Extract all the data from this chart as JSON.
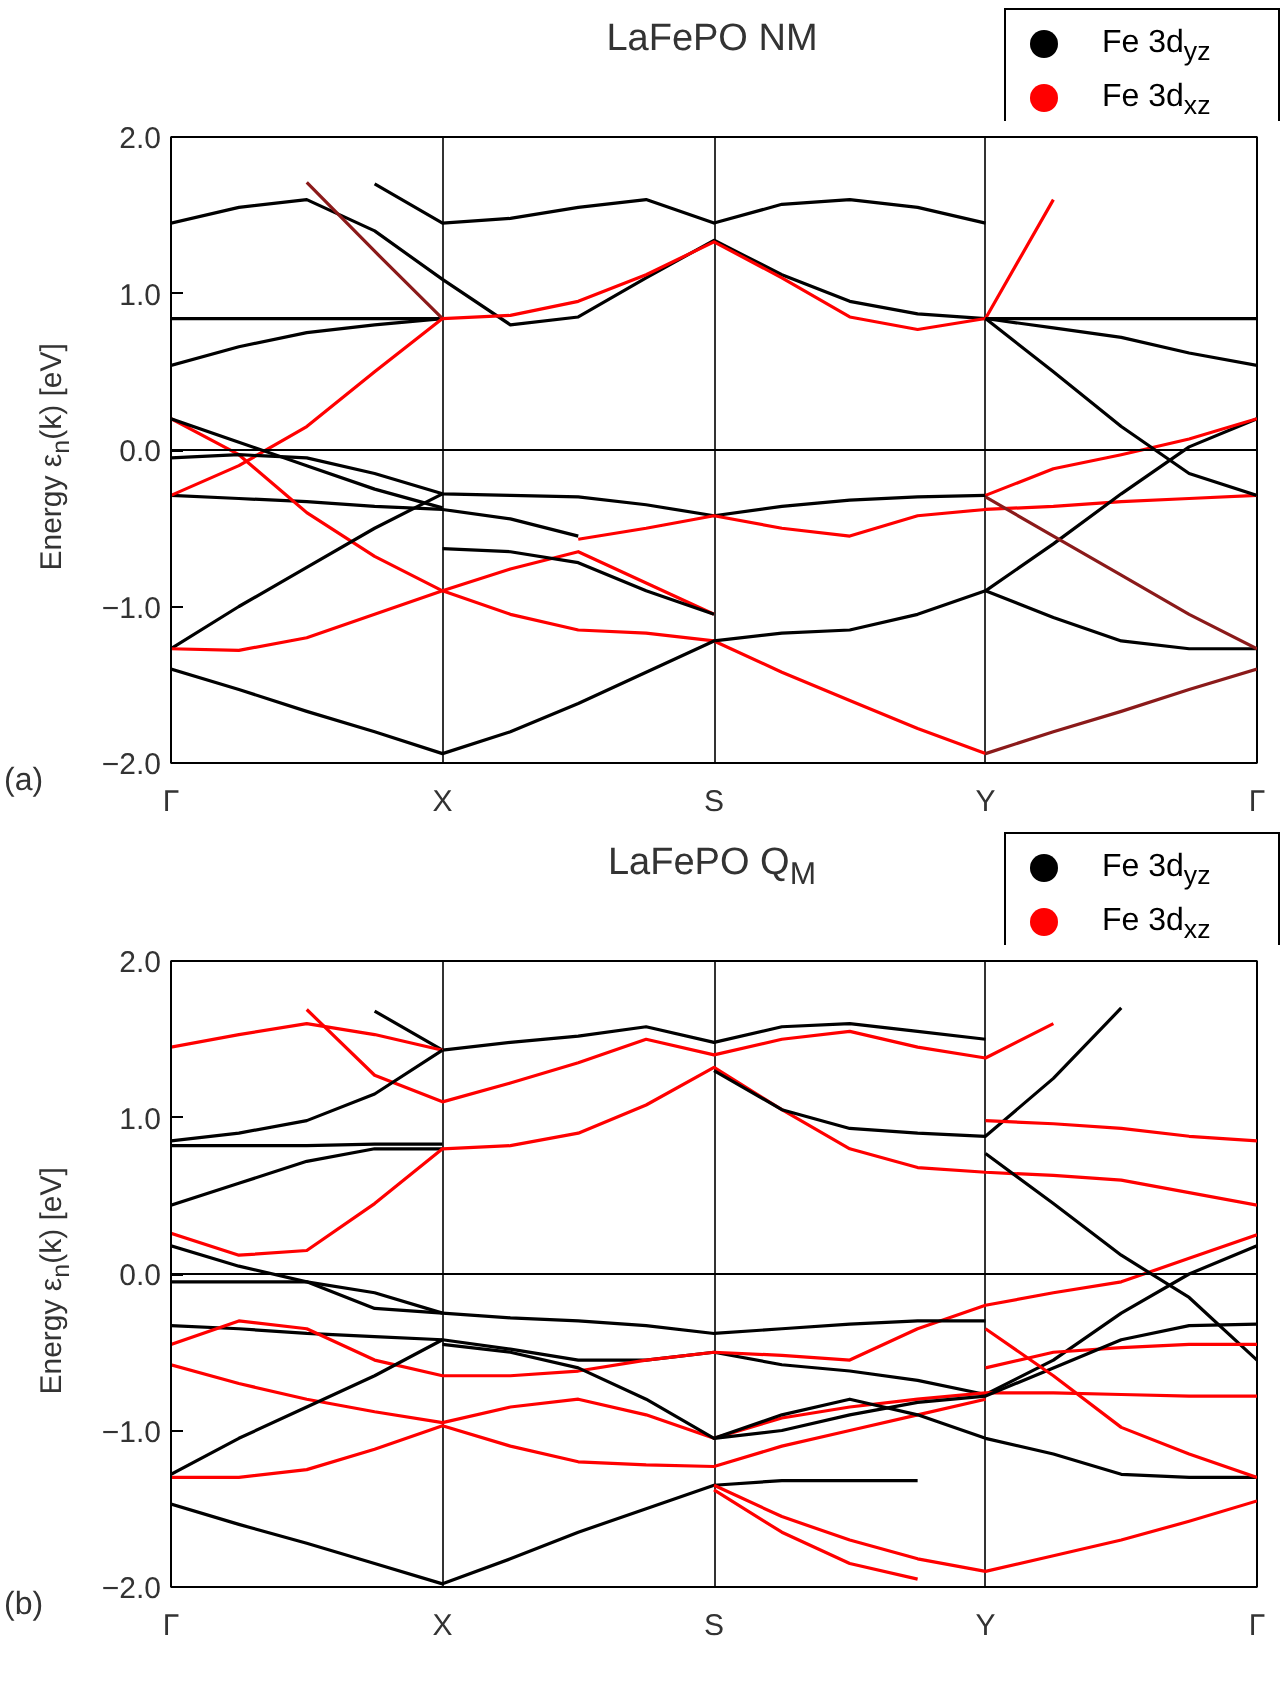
{
  "chart_data": [
    {
      "type": "line",
      "title": "LaFePO NM",
      "ylabel": "Energy ε$_{n}$(k)  [eV]",
      "annotations": [
        "(a)"
      ],
      "categories": [
        "Γ",
        null,
        null,
        null,
        "X",
        null,
        null,
        null,
        "S",
        null,
        null,
        null,
        "Y",
        null,
        null,
        null,
        "Γ"
      ],
      "ylim": [
        -2,
        2
      ],
      "yticks": [
        {
          "value": -2,
          "label": "−2.0"
        },
        {
          "value": -1,
          "label": "−1.0"
        },
        {
          "value": 0,
          "label": "0.0"
        },
        {
          "value": 1,
          "label": "1.0"
        },
        {
          "value": 2,
          "label": "2.0"
        }
      ],
      "grid": "x",
      "legend": "top right",
      "ref_lines": [
        {
          "axis": "y",
          "value": 0
        }
      ],
      "series": [
        {
          "name": "Fe 3d$_{yz}$",
          "color": "#000000",
          "values": [
            -0.29,
            -0.31,
            -0.33,
            -0.36,
            -0.38,
            -0.44,
            -0.55,
            null,
            null,
            null,
            null,
            null,
            null,
            null,
            null,
            null,
            null
          ]
        },
        {
          "name": "Fe 3d$_{xz}$",
          "color": "#ff0000",
          "values": [
            0.2,
            -0.03,
            -0.4,
            -0.68,
            -0.9,
            -1.05,
            -1.15,
            -1.17,
            -1.22,
            -1.42,
            -1.6,
            -1.78,
            -1.94,
            null,
            null,
            null,
            null
          ]
        },
        {
          "color": "#000000",
          "values": [
            1.45,
            1.55,
            1.6,
            1.4,
            1.09,
            0.8,
            0.85,
            1.1,
            1.34,
            1.12,
            0.95,
            0.87,
            0.84,
            0.84,
            0.84,
            0.84,
            0.84
          ]
        },
        {
          "color": "#000000",
          "values": [
            null,
            null,
            null,
            1.7,
            1.45,
            1.48,
            1.55,
            1.6,
            1.45,
            1.57,
            1.6,
            1.55,
            1.45,
            null,
            null,
            null,
            null
          ]
        },
        {
          "color": "#000000",
          "values": [
            0.84,
            0.84,
            0.84,
            0.84,
            0.84,
            null,
            null,
            null,
            null,
            null,
            null,
            null,
            null,
            null,
            null,
            null,
            null
          ]
        },
        {
          "color": "#000000",
          "values": [
            0.54,
            0.66,
            0.75,
            0.8,
            0.84,
            null,
            null,
            null,
            null,
            null,
            null,
            null,
            null,
            null,
            null,
            null,
            null
          ]
        },
        {
          "color": "#8b1a1a",
          "values": [
            null,
            null,
            1.71,
            1.27,
            0.84,
            null,
            null,
            null,
            null,
            null,
            null,
            null,
            null,
            null,
            null,
            null,
            null
          ]
        },
        {
          "color": "#ff0000",
          "values": [
            null,
            null,
            null,
            null,
            0.84,
            0.86,
            0.95,
            1.12,
            1.33,
            1.1,
            0.85,
            0.77,
            0.84,
            1.6,
            null,
            null,
            null
          ]
        },
        {
          "color": "#ff0000",
          "values": [
            -0.29,
            -0.1,
            0.15,
            0.5,
            0.84,
            null,
            null,
            null,
            null,
            null,
            null,
            null,
            null,
            null,
            null,
            null,
            null
          ]
        },
        {
          "color": "#000000",
          "values": [
            0.2,
            0.05,
            -0.1,
            -0.25,
            -0.37,
            null,
            null,
            null,
            null,
            null,
            null,
            null,
            null,
            null,
            null,
            null,
            null
          ]
        },
        {
          "color": "#000000",
          "values": [
            -0.05,
            -0.03,
            -0.05,
            -0.15,
            -0.28,
            -0.29,
            -0.3,
            -0.35,
            -0.42,
            -0.36,
            -0.32,
            -0.3,
            -0.29,
            null,
            null,
            null,
            null
          ]
        },
        {
          "color": "#ff0000",
          "values": [
            null,
            null,
            null,
            null,
            null,
            null,
            -0.57,
            -0.5,
            -0.42,
            -0.5,
            -0.55,
            -0.42,
            -0.38,
            -0.36,
            -0.33,
            -0.31,
            -0.29
          ]
        },
        {
          "color": "#000000",
          "values": [
            -1.27,
            -1.0,
            -0.75,
            -0.5,
            -0.28,
            null,
            null,
            null,
            null,
            null,
            null,
            null,
            null,
            null,
            null,
            null,
            null
          ]
        },
        {
          "color": "#000000",
          "values": [
            -1.4,
            -1.53,
            -1.67,
            -1.8,
            -1.94,
            -1.8,
            -1.62,
            -1.42,
            -1.22,
            -1.17,
            -1.15,
            -1.05,
            -0.9,
            -1.07,
            -1.22,
            -1.27,
            -1.27
          ]
        },
        {
          "color": "#ff0000",
          "values": [
            -1.27,
            -1.28,
            -1.2,
            -1.05,
            -0.9,
            -0.76,
            -0.65,
            -0.85,
            -1.05,
            null,
            null,
            null,
            null,
            null,
            null,
            null,
            null
          ]
        },
        {
          "color": "#000000",
          "values": [
            null,
            null,
            null,
            null,
            -0.63,
            -0.65,
            -0.72,
            -0.9,
            -1.05,
            null,
            null,
            null,
            null,
            null,
            null,
            null,
            null
          ]
        },
        {
          "color": "#000000",
          "values": [
            null,
            null,
            null,
            null,
            null,
            null,
            null,
            null,
            null,
            null,
            null,
            null,
            -0.9,
            -0.6,
            -0.28,
            0.02,
            0.2
          ]
        },
        {
          "color": "#ff0000",
          "values": [
            null,
            null,
            null,
            null,
            null,
            null,
            null,
            null,
            null,
            null,
            null,
            null,
            -0.29,
            -0.12,
            -0.03,
            0.07,
            0.2
          ]
        },
        {
          "color": "#000000",
          "values": [
            null,
            null,
            null,
            null,
            null,
            null,
            null,
            null,
            null,
            null,
            null,
            null,
            0.84,
            0.5,
            0.15,
            -0.15,
            -0.29
          ]
        },
        {
          "color": "#000000",
          "values": [
            null,
            null,
            null,
            null,
            null,
            null,
            null,
            null,
            null,
            null,
            null,
            null,
            0.84,
            0.78,
            0.72,
            0.62,
            0.54
          ]
        },
        {
          "color": "#8b1a1a",
          "values": [
            null,
            null,
            null,
            null,
            null,
            null,
            null,
            null,
            null,
            null,
            null,
            null,
            -0.3,
            -0.55,
            -0.8,
            -1.05,
            -1.27
          ]
        },
        {
          "color": "#8b1a1a",
          "values": [
            null,
            null,
            null,
            null,
            null,
            null,
            null,
            null,
            null,
            null,
            null,
            null,
            -1.94,
            -1.8,
            -1.67,
            -1.53,
            -1.4
          ]
        }
      ]
    },
    {
      "type": "line",
      "title": "LaFePO Q$_{M}$",
      "ylabel": "Energy ε$_{n}$(k)  [eV]",
      "annotations": [
        "(b)"
      ],
      "categories": [
        "Γ",
        null,
        null,
        null,
        "X",
        null,
        null,
        null,
        "S",
        null,
        null,
        null,
        "Y",
        null,
        null,
        null,
        "Γ"
      ],
      "ylim": [
        -2,
        2
      ],
      "yticks": [
        {
          "value": -2,
          "label": "−2.0"
        },
        {
          "value": -1,
          "label": "−1.0"
        },
        {
          "value": 0,
          "label": "0.0"
        },
        {
          "value": 1,
          "label": "1.0"
        },
        {
          "value": 2,
          "label": "2.0"
        }
      ],
      "grid": "x",
      "legend": "top right",
      "ref_lines": [
        {
          "axis": "y",
          "value": 0
        }
      ],
      "series": [
        {
          "name": "Fe 3d$_{yz}$",
          "color": "#000000",
          "values": [
            -0.33,
            -0.35,
            -0.38,
            -0.4,
            -0.42,
            -0.48,
            -0.55,
            -0.55,
            -0.5,
            -0.58,
            -0.62,
            -0.68,
            -0.77,
            -0.55,
            -0.25,
            0.0,
            0.18
          ]
        },
        {
          "name": "Fe 3d$_{xz}$",
          "color": "#ff0000",
          "values": [
            -0.45,
            -0.3,
            -0.35,
            -0.55,
            -0.65,
            -0.65,
            -0.62,
            -0.55,
            -0.5,
            -0.52,
            -0.55,
            -0.35,
            -0.2,
            -0.12,
            -0.05,
            0.1,
            0.25
          ]
        },
        {
          "color": "#ff0000",
          "values": [
            null,
            null,
            1.69,
            1.27,
            1.1,
            1.22,
            1.35,
            1.5,
            1.4,
            1.5,
            1.55,
            1.45,
            1.38,
            1.6,
            null,
            null,
            null
          ]
        },
        {
          "color": "#000000",
          "values": [
            null,
            null,
            null,
            1.68,
            1.43,
            1.48,
            1.52,
            1.58,
            1.48,
            1.58,
            1.6,
            1.55,
            1.5,
            null,
            null,
            null,
            null
          ]
        },
        {
          "color": "#ff0000",
          "values": [
            1.45,
            1.53,
            1.6,
            1.53,
            1.43,
            null,
            null,
            null,
            null,
            null,
            null,
            null,
            null,
            null,
            null,
            null,
            null
          ]
        },
        {
          "color": "#000000",
          "values": [
            0.85,
            0.9,
            0.98,
            1.15,
            1.43,
            null,
            null,
            null,
            null,
            null,
            null,
            null,
            null,
            null,
            null,
            null,
            null
          ]
        },
        {
          "color": "#000000",
          "values": [
            0.82,
            0.82,
            0.82,
            0.83,
            0.83,
            null,
            null,
            null,
            null,
            null,
            null,
            null,
            null,
            null,
            null,
            null,
            null
          ]
        },
        {
          "color": "#000000",
          "values": [
            0.44,
            0.58,
            0.72,
            0.8,
            0.8,
            null,
            null,
            null,
            null,
            null,
            null,
            null,
            null,
            null,
            null,
            null,
            null
          ]
        },
        {
          "color": "#ff0000",
          "values": [
            0.26,
            0.12,
            0.15,
            0.45,
            0.8,
            0.82,
            0.9,
            1.08,
            1.32,
            1.05,
            0.8,
            0.68,
            0.65,
            0.63,
            0.6,
            0.52,
            0.44
          ]
        },
        {
          "color": "#000000",
          "values": [
            null,
            null,
            null,
            null,
            null,
            null,
            null,
            null,
            1.3,
            1.05,
            0.93,
            0.9,
            0.88,
            1.25,
            1.7,
            null,
            null
          ]
        },
        {
          "color": "#ff0000",
          "values": [
            null,
            null,
            null,
            null,
            null,
            null,
            null,
            null,
            null,
            null,
            null,
            null,
            0.98,
            0.96,
            0.93,
            0.88,
            0.85
          ]
        },
        {
          "color": "#000000",
          "values": [
            null,
            null,
            null,
            null,
            null,
            null,
            null,
            null,
            null,
            null,
            null,
            null,
            0.77,
            0.45,
            0.12,
            -0.15,
            -0.55
          ]
        },
        {
          "color": "#000000",
          "values": [
            0.18,
            0.05,
            -0.05,
            -0.22,
            -0.25,
            -0.28,
            -0.3,
            -0.33,
            -0.38,
            -0.35,
            -0.32,
            -0.3,
            -0.3,
            null,
            null,
            null,
            null
          ]
        },
        {
          "color": "#ff0000",
          "values": [
            null,
            null,
            null,
            null,
            null,
            null,
            null,
            null,
            null,
            null,
            null,
            null,
            -0.6,
            -0.5,
            -0.47,
            -0.45,
            -0.45
          ]
        },
        {
          "color": "#000000",
          "values": [
            -0.05,
            -0.05,
            -0.05,
            -0.12,
            -0.25,
            null,
            null,
            null,
            null,
            null,
            null,
            null,
            null,
            null,
            null,
            null,
            null
          ]
        },
        {
          "color": "#ff0000",
          "values": [
            -0.58,
            -0.7,
            -0.8,
            -0.88,
            -0.95,
            -0.85,
            -0.8,
            -0.9,
            -1.05,
            -0.92,
            -0.85,
            -0.8,
            -0.76,
            -0.76,
            -0.77,
            -0.78,
            -0.78
          ]
        },
        {
          "color": "#000000",
          "values": [
            -1.28,
            -1.05,
            -0.85,
            -0.65,
            -0.42,
            null,
            null,
            null,
            null,
            null,
            null,
            null,
            null,
            null,
            null,
            null,
            null
          ]
        },
        {
          "color": "#ff0000",
          "values": [
            -1.3,
            -1.3,
            -1.25,
            -1.12,
            -0.97,
            -1.1,
            -1.2,
            -1.22,
            -1.23,
            -1.1,
            -1.0,
            -0.9,
            -0.8,
            null,
            null,
            null,
            null
          ]
        },
        {
          "color": "#000000",
          "values": [
            null,
            null,
            null,
            null,
            -0.45,
            -0.5,
            -0.6,
            -0.8,
            -1.05,
            -1.0,
            -0.9,
            -0.82,
            -0.78,
            -0.6,
            -0.42,
            -0.33,
            -0.32
          ]
        },
        {
          "color": "#000000",
          "values": [
            null,
            null,
            null,
            null,
            null,
            null,
            null,
            null,
            -1.05,
            -0.9,
            -0.8,
            -0.9,
            -1.05,
            -1.15,
            -1.28,
            -1.3,
            -1.3
          ]
        },
        {
          "color": "#000000",
          "values": [
            -1.47,
            -1.6,
            -1.72,
            -1.85,
            -1.98,
            -1.82,
            -1.65,
            -1.5,
            -1.35,
            -1.32,
            -1.32,
            -1.32,
            null,
            null,
            null,
            null,
            null
          ]
        },
        {
          "color": "#ff0000",
          "values": [
            null,
            null,
            null,
            null,
            null,
            null,
            null,
            null,
            -1.35,
            -1.55,
            -1.7,
            -1.82,
            -1.9,
            -1.8,
            -1.7,
            -1.58,
            -1.45
          ]
        },
        {
          "color": "#ff0000",
          "values": [
            null,
            null,
            null,
            null,
            null,
            null,
            null,
            null,
            -1.38,
            -1.65,
            -1.85,
            -1.95,
            null,
            null,
            null,
            null,
            null
          ]
        },
        {
          "color": "#ff0000",
          "values": [
            null,
            null,
            null,
            null,
            null,
            null,
            null,
            null,
            null,
            null,
            null,
            null,
            -0.35,
            -0.65,
            -0.98,
            -1.15,
            -1.3
          ]
        }
      ]
    }
  ]
}
